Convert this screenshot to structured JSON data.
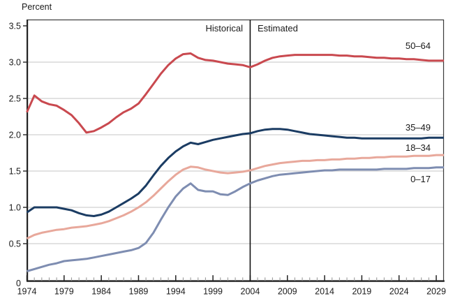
{
  "chart": {
    "y_axis_title": "Percent",
    "historical_label": "Historical",
    "estimated_label": "Estimated"
  },
  "chart_data": {
    "type": "line",
    "title": "",
    "y_axis_title": "Percent",
    "xlabel": "",
    "ylabel": "Percent",
    "xlim": [
      1974,
      2029
    ],
    "ylim": [
      0,
      3.5
    ],
    "grid": "horizontal",
    "gridlines_at": [
      0.5,
      1.0,
      1.5,
      2.0,
      2.5,
      3.0
    ],
    "y_ticks": [
      {
        "v": 0,
        "label": "0"
      },
      {
        "v": 0.5,
        "label": "0.5"
      },
      {
        "v": 1.0,
        "label": "1.0"
      },
      {
        "v": 1.5,
        "label": "1.5"
      },
      {
        "v": 2.0,
        "label": "2.0"
      },
      {
        "v": 2.5,
        "label": "2.5"
      },
      {
        "v": 3.0,
        "label": "3.0"
      },
      {
        "v": 3.5,
        "label": "3.5"
      }
    ],
    "x_minor_tick_interval": 1,
    "x_major_tick_interval": 5,
    "x_tick_labels": [
      "1974",
      "1979",
      "1984",
      "1989",
      "1994",
      "1999",
      "2004",
      "2009",
      "2014",
      "2019",
      "2024",
      "2029"
    ],
    "divider_year": 2004,
    "divider_labels": {
      "left": "Historical",
      "right": "Estimated"
    },
    "legend_position": "end-of-line-labels",
    "x": [
      1974,
      1975,
      1976,
      1977,
      1978,
      1979,
      1980,
      1981,
      1982,
      1983,
      1984,
      1985,
      1986,
      1987,
      1988,
      1989,
      1990,
      1991,
      1992,
      1993,
      1994,
      1995,
      1996,
      1997,
      1998,
      1999,
      2000,
      2001,
      2002,
      2003,
      2004,
      2005,
      2006,
      2007,
      2008,
      2009,
      2010,
      2011,
      2012,
      2013,
      2014,
      2015,
      2016,
      2017,
      2018,
      2019,
      2020,
      2021,
      2022,
      2023,
      2024,
      2025,
      2026,
      2027,
      2028,
      2029
    ],
    "series": [
      {
        "name": "50–64",
        "color": "#c9494f",
        "label_side": "above",
        "values": [
          2.31,
          2.54,
          2.46,
          2.42,
          2.4,
          2.34,
          2.27,
          2.16,
          2.03,
          2.05,
          2.1,
          2.16,
          2.24,
          2.31,
          2.36,
          2.43,
          2.56,
          2.7,
          2.84,
          2.96,
          3.05,
          3.11,
          3.12,
          3.06,
          3.03,
          3.02,
          3.0,
          2.98,
          2.97,
          2.96,
          2.93,
          2.97,
          3.02,
          3.06,
          3.08,
          3.09,
          3.1,
          3.1,
          3.1,
          3.1,
          3.1,
          3.1,
          3.09,
          3.09,
          3.08,
          3.08,
          3.07,
          3.06,
          3.06,
          3.05,
          3.05,
          3.04,
          3.04,
          3.03,
          3.02,
          3.02
        ]
      },
      {
        "name": "35–49",
        "color": "#1b3c63",
        "label_side": "above",
        "values": [
          0.93,
          1.0,
          1.0,
          1.0,
          1.0,
          0.98,
          0.96,
          0.92,
          0.89,
          0.88,
          0.9,
          0.94,
          1.0,
          1.06,
          1.12,
          1.19,
          1.3,
          1.44,
          1.57,
          1.68,
          1.77,
          1.84,
          1.89,
          1.87,
          1.9,
          1.93,
          1.95,
          1.97,
          1.99,
          2.01,
          2.02,
          2.05,
          2.07,
          2.08,
          2.08,
          2.07,
          2.05,
          2.03,
          2.01,
          2.0,
          1.99,
          1.98,
          1.97,
          1.96,
          1.96,
          1.95,
          1.95,
          1.95,
          1.95,
          1.95,
          1.95,
          1.95,
          1.95,
          1.95,
          1.96,
          1.96
        ]
      },
      {
        "name": "18–34",
        "color": "#e8a89b",
        "label_side": "above",
        "values": [
          0.57,
          0.62,
          0.65,
          0.67,
          0.69,
          0.7,
          0.72,
          0.73,
          0.74,
          0.76,
          0.78,
          0.81,
          0.85,
          0.89,
          0.94,
          1.0,
          1.07,
          1.16,
          1.26,
          1.36,
          1.45,
          1.52,
          1.56,
          1.55,
          1.52,
          1.5,
          1.48,
          1.47,
          1.48,
          1.49,
          1.51,
          1.54,
          1.57,
          1.59,
          1.61,
          1.62,
          1.63,
          1.64,
          1.64,
          1.65,
          1.65,
          1.66,
          1.66,
          1.67,
          1.67,
          1.68,
          1.68,
          1.69,
          1.69,
          1.7,
          1.7,
          1.7,
          1.71,
          1.71,
          1.71,
          1.72
        ]
      },
      {
        "name": "0–17",
        "color": "#7e8db1",
        "label_side": "below",
        "values": [
          0.12,
          0.15,
          0.18,
          0.21,
          0.23,
          0.26,
          0.27,
          0.28,
          0.29,
          0.31,
          0.33,
          0.35,
          0.37,
          0.39,
          0.41,
          0.44,
          0.51,
          0.65,
          0.83,
          1.0,
          1.15,
          1.26,
          1.33,
          1.24,
          1.22,
          1.22,
          1.18,
          1.17,
          1.22,
          1.28,
          1.33,
          1.37,
          1.4,
          1.43,
          1.45,
          1.46,
          1.47,
          1.48,
          1.49,
          1.5,
          1.51,
          1.51,
          1.52,
          1.52,
          1.52,
          1.52,
          1.52,
          1.52,
          1.53,
          1.53,
          1.53,
          1.53,
          1.54,
          1.54,
          1.54,
          1.55
        ]
      }
    ],
    "colors": {
      "gridline": "#d8d8d8",
      "border": "#3a3a3a",
      "axis": "#222222",
      "minor_tick": "#9a9a9a",
      "major_tick": "#222222",
      "divider": "#111111",
      "text": "#1a1a1a"
    }
  }
}
